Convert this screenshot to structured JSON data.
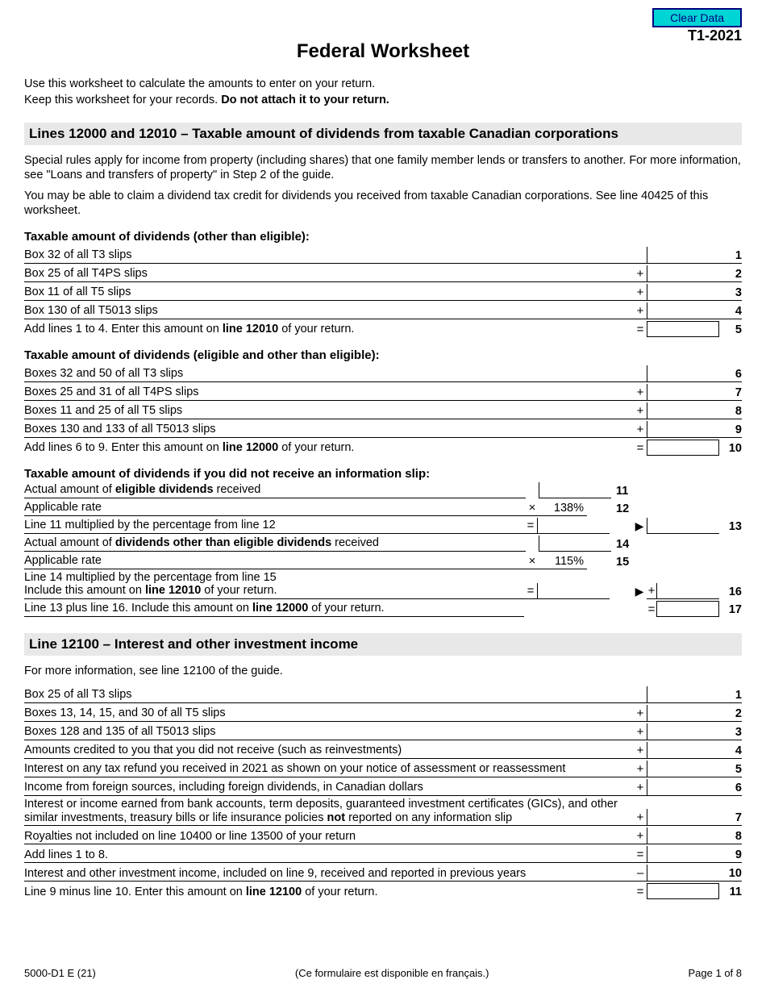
{
  "header": {
    "clear_button": "Clear Data",
    "form_code": "T1-2021",
    "title": "Federal Worksheet",
    "intro1": "Use this worksheet to calculate the amounts to enter on your return.",
    "intro2_a": "Keep this worksheet for your records. ",
    "intro2_b": "Do not attach it to your return."
  },
  "section1": {
    "heading": "Lines 12000 and 12010 – Taxable amount of dividends from taxable Canadian corporations",
    "para1": "Special rules apply for income from property (including shares) that one family member lends or transfers to another. For more information, see \"Loans and transfers of property\" in Step 2 of the guide.",
    "para2": "You may be able to claim a dividend tax credit for dividends you received from taxable Canadian corporations. See line 40425 of this worksheet.",
    "sub1": "Taxable amount of dividends (other than eligible):",
    "rows_a": [
      {
        "label": "Box 32 of all T3 slips",
        "op": "",
        "boxed": false,
        "num": "1"
      },
      {
        "label": "Box 25 of all T4PS slips",
        "op": "+",
        "boxed": false,
        "num": "2"
      },
      {
        "label": "Box 11 of all T5 slips",
        "op": "+",
        "boxed": false,
        "num": "3"
      },
      {
        "label": "Box 130 of all T5013 slips",
        "op": "+",
        "boxed": false,
        "num": "4"
      },
      {
        "label_a": "Add lines 1 to 4. Enter this amount on ",
        "label_b": "line 12010",
        "label_c": " of your return.",
        "op": "=",
        "boxed": true,
        "num": "5"
      }
    ],
    "sub2": "Taxable amount of dividends (eligible and other than eligible):",
    "rows_b": [
      {
        "label": "Boxes 32 and 50 of all T3 slips",
        "op": "",
        "boxed": false,
        "num": "6"
      },
      {
        "label": "Boxes 25 and 31 of all T4PS slips",
        "op": "+",
        "boxed": false,
        "num": "7"
      },
      {
        "label": "Boxes 11 and 25 of all T5 slips",
        "op": "+",
        "boxed": false,
        "num": "8"
      },
      {
        "label": "Boxes 130 and 133 of all T5013 slips",
        "op": "+",
        "boxed": false,
        "num": "9"
      },
      {
        "label_a": "Add lines 6 to 9. Enter this amount on ",
        "label_b": "line 12000",
        "label_c": " of your return.",
        "op": "=",
        "boxed": true,
        "num": "10"
      }
    ],
    "sub3": "Taxable amount of dividends if you did not receive an information slip:",
    "r11_a": "Actual amount of ",
    "r11_b": "eligible dividends",
    "r11_c": " received",
    "n11": "11",
    "r12": "Applicable rate",
    "r12_op": "×",
    "r12_pct": "138%",
    "n12": "12",
    "r13": "Line 11 multiplied by the percentage from line 12",
    "r13_op": "=",
    "n13": "13",
    "r14_a": "Actual amount of ",
    "r14_b": "dividends other than eligible dividends",
    "r14_c": " received",
    "n14": "14",
    "r15": "Applicable rate",
    "r15_op": "×",
    "r15_pct": "115%",
    "n15": "15",
    "r16a": "Line 14 multiplied by the percentage from line 15",
    "r16b_a": "Include this amount on ",
    "r16b_b": "line 12010",
    "r16b_c": " of your return.",
    "r16_op": "=",
    "r16_op2": "+",
    "n16": "16",
    "r17_a": "Line 13 plus line 16. Include this amount on ",
    "r17_b": "line 12000",
    "r17_c": " of your return.",
    "r17_op": "=",
    "n17": "17"
  },
  "section2": {
    "heading": "Line 12100 – Interest and other investment income",
    "para1": "For more information, see line 12100 of the guide.",
    "rows": [
      {
        "label": "Box 25 of all T3 slips",
        "op": "",
        "boxed": false,
        "num": "1"
      },
      {
        "label": "Boxes 13, 14, 15, and 30 of all T5 slips",
        "op": "+",
        "boxed": false,
        "num": "2"
      },
      {
        "label": "Boxes 128 and 135 of all T5013 slips",
        "op": "+",
        "boxed": false,
        "num": "3"
      },
      {
        "label": "Amounts credited to you that you did not receive (such as reinvestments)",
        "op": "+",
        "boxed": false,
        "num": "4"
      },
      {
        "label": "Interest on any tax refund you received in 2021 as shown on your notice of assessment or reassessment",
        "op": "+",
        "boxed": false,
        "num": "5"
      },
      {
        "label": "Income from foreign sources, including foreign dividends, in Canadian dollars",
        "op": "+",
        "boxed": false,
        "num": "6"
      },
      {
        "label_a": "Interest or income earned from bank accounts, term deposits, guaranteed investment certificates (GICs), and other similar investments, treasury bills or life insurance policies ",
        "label_b": "not",
        "label_c": " reported on any information slip",
        "op": "+",
        "boxed": false,
        "num": "7"
      },
      {
        "label": "Royalties not included on line 10400 or line 13500 of your return",
        "op": "+",
        "boxed": false,
        "num": "8"
      },
      {
        "label": "Add lines 1 to 8.",
        "op": "=",
        "boxed": false,
        "num": "9"
      },
      {
        "label": "Interest and other investment income, included on line 9, received and reported in previous years",
        "op": "–",
        "boxed": false,
        "num": "10"
      },
      {
        "label_a": "Line 9 minus line 10. Enter this amount on ",
        "label_b": "line 12100",
        "label_c": " of your return.",
        "op": "=",
        "boxed": true,
        "num": "11"
      }
    ]
  },
  "footer": {
    "left": "5000-D1 E (21)",
    "center": "(Ce formulaire est disponible en français.)",
    "right": "Page 1 of 8"
  }
}
